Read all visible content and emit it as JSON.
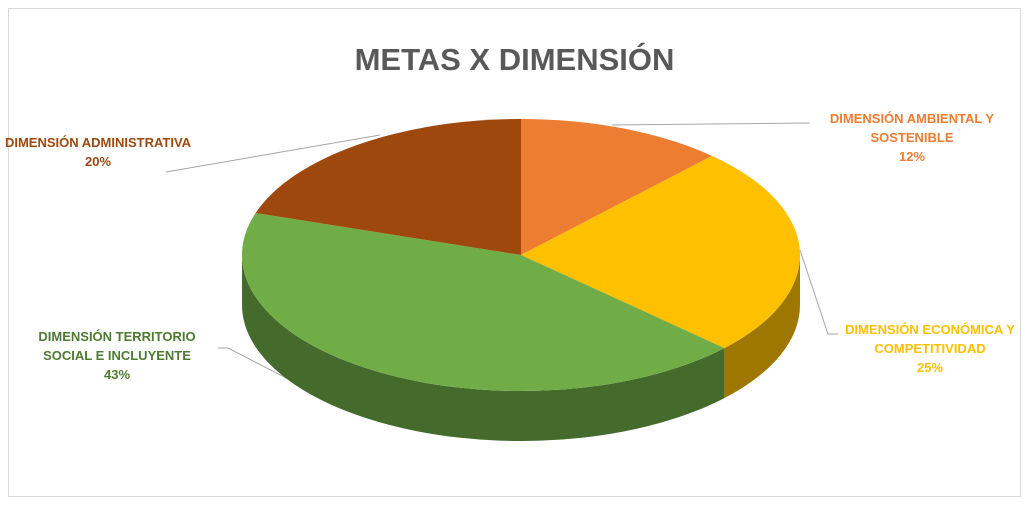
{
  "chart_data": {
    "type": "pie3d",
    "title": "METAS X DIMENSIÓN",
    "categories": [
      "DIMENSIÓN AMBIENTAL Y SOSTENIBLE",
      "DIMENSIÓN ECONÓMICA Y COMPETITIVIDAD",
      "DIMENSIÓN TERRITORIO SOCIAL E INCLUYENTE",
      "DIMENSIÓN ADMINISTRATIVA"
    ],
    "values": [
      12,
      25,
      43,
      20
    ],
    "value_labels": [
      "12%",
      "25%",
      "43%",
      "20%"
    ],
    "colors": [
      "#ed7d31",
      "#ffc000",
      "#70ad47",
      "#9e480e"
    ]
  }
}
